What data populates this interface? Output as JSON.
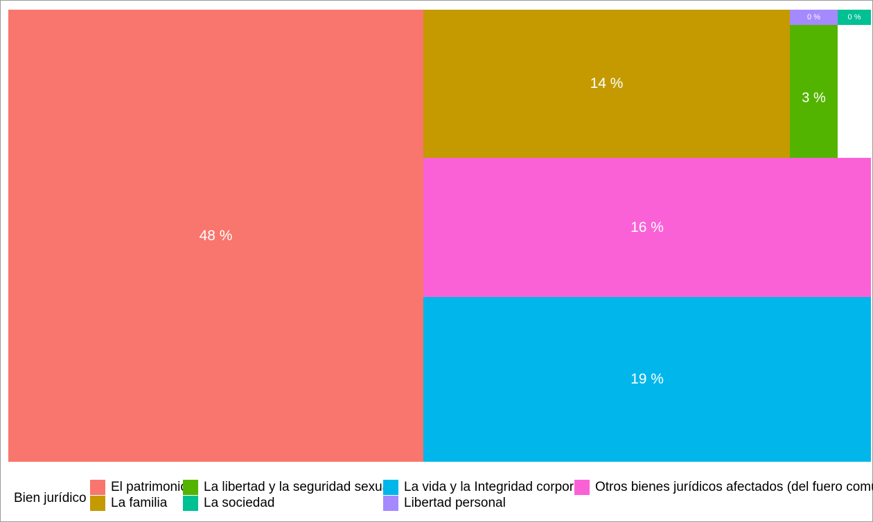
{
  "chart_data": {
    "type": "treemap",
    "title": "",
    "legend": {
      "title": "Bien jurídico",
      "position": "bottom",
      "entries": [
        {
          "name": "El patrimonio",
          "color": "#F8766D"
        },
        {
          "name": "La familia",
          "color": "#C49A00"
        },
        {
          "name": "La libertad y la seguridad sexual",
          "color": "#53B400"
        },
        {
          "name": "La sociedad",
          "color": "#00C094"
        },
        {
          "name": "La vida y la Integridad corporal",
          "color": "#00B6EB"
        },
        {
          "name": "Libertad personal",
          "color": "#A58AFF"
        },
        {
          "name": "Otros bienes jurídicos afectados (del fuero común)",
          "color": "#FB61D7"
        }
      ]
    },
    "series": [
      {
        "name": "El patrimonio",
        "value": 48,
        "label": "48 %"
      },
      {
        "name": "La vida y la Integridad corporal",
        "value": 19,
        "label": "19 %"
      },
      {
        "name": "Otros bienes jurídicos afectados (del fuero común)",
        "value": 16,
        "label": "16 %"
      },
      {
        "name": "La familia",
        "value": 14,
        "label": "14 %"
      },
      {
        "name": "La libertad y la seguridad sexual",
        "value": 3,
        "label": "3 %"
      },
      {
        "name": "Libertad personal",
        "value": 0,
        "label": "0 %"
      },
      {
        "name": "La sociedad",
        "value": 0,
        "label": "0 %"
      }
    ]
  }
}
